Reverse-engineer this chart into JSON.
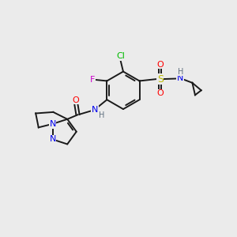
{
  "background_color": "#ebebeb",
  "bond_color": "#1a1a1a",
  "figsize": [
    3.0,
    3.0
  ],
  "dpi": 100,
  "colors": {
    "Cl": "#00bb00",
    "F": "#cc00cc",
    "O": "#ff0000",
    "N": "#0000ee",
    "S": "#bbbb00",
    "H": "#607080",
    "C": "#1a1a1a"
  }
}
